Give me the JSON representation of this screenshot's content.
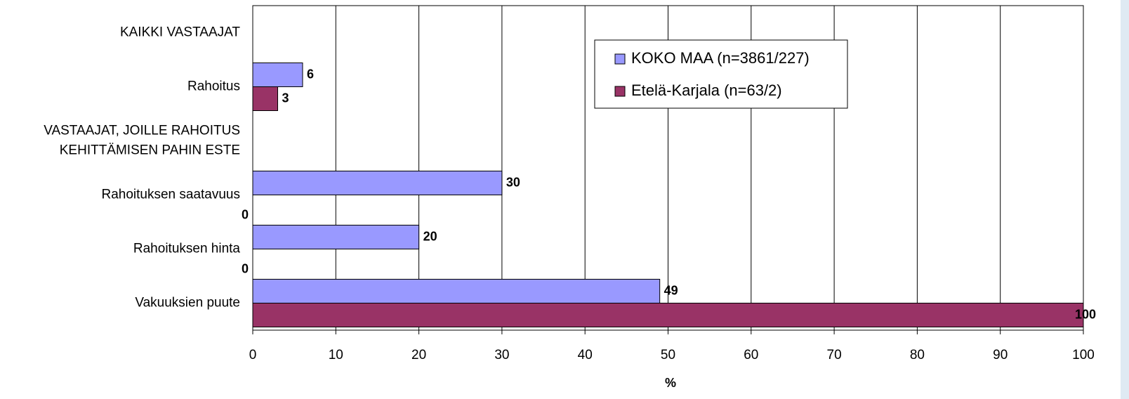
{
  "chart_data": {
    "type": "bar",
    "orientation": "horizontal",
    "categories": [
      "KAIKKI VASTAAJAT",
      "Rahoitus",
      "VASTAAJAT, JOILLE RAHOITUS\nKEHITTÄMISEN PAHIN ESTE",
      "Rahoituksen saatavuus",
      "Rahoituksen hinta",
      "Vakuuksien puute"
    ],
    "series": [
      {
        "name": "KOKO MAA (n=3861/227)",
        "color": "#9999ff",
        "values": [
          null,
          6,
          null,
          30,
          20,
          49
        ]
      },
      {
        "name": "Etelä-Karjala (n=63/2)",
        "color": "#993366",
        "values": [
          null,
          3,
          null,
          0,
          0,
          100
        ]
      }
    ],
    "xlabel": "%",
    "xlim": [
      0,
      100
    ],
    "xticks": [
      0,
      10,
      20,
      30,
      40,
      50,
      60,
      70,
      80,
      90,
      100
    ],
    "grid": true,
    "legend": "top-right"
  }
}
